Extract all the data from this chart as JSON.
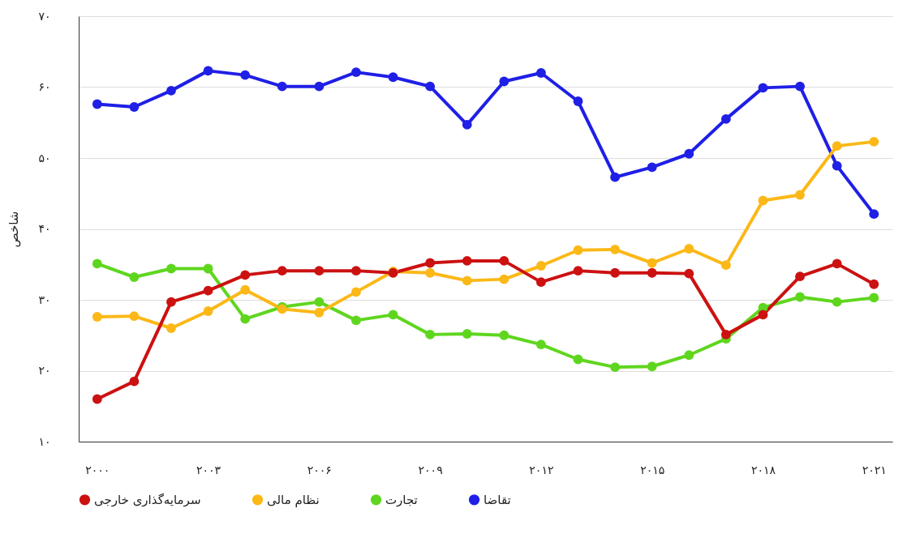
{
  "chart_data": {
    "type": "line",
    "ylabel": "شاخص",
    "x": [
      2000,
      2001,
      2002,
      2003,
      2004,
      2005,
      2006,
      2007,
      2008,
      2009,
      2010,
      2011,
      2012,
      2013,
      2014,
      2015,
      2016,
      2017,
      2018,
      2019,
      2020,
      2021
    ],
    "series": [
      {
        "name": "تقاضا",
        "color": "#1f1fe6",
        "values": [
          57.6,
          57.2,
          59.5,
          62.3,
          61.7,
          60.1,
          60.1,
          62.1,
          61.4,
          60.1,
          54.7,
          60.8,
          62.0,
          58.0,
          47.3,
          48.7,
          50.6,
          55.5,
          59.9,
          60.1,
          48.9,
          42.1
        ]
      },
      {
        "name": "تجارت",
        "color": "#5fd61e",
        "values": [
          35.1,
          33.2,
          34.4,
          34.4,
          27.3,
          29.0,
          29.7,
          27.1,
          27.9,
          25.1,
          25.2,
          25.0,
          23.7,
          21.6,
          20.5,
          20.6,
          22.2,
          24.5,
          28.9,
          30.4,
          29.7,
          30.3
        ]
      },
      {
        "name": "نظام مالی",
        "color": "#fbb817",
        "values": [
          27.6,
          27.7,
          26.0,
          28.4,
          31.4,
          28.7,
          28.2,
          31.1,
          34.0,
          33.8,
          32.7,
          32.9,
          34.8,
          37.0,
          37.1,
          35.2,
          37.2,
          34.9,
          44.0,
          44.8,
          51.7,
          52.3
        ]
      },
      {
        "name": "سرمایه‌گذاری خارجی",
        "color": "#cc1111",
        "values": [
          16.0,
          18.5,
          29.7,
          31.3,
          33.5,
          34.1,
          34.1,
          34.1,
          33.8,
          35.2,
          35.5,
          35.5,
          32.5,
          34.1,
          33.8,
          33.8,
          33.7,
          25.1,
          27.9,
          33.3,
          35.1,
          32.2
        ]
      }
    ],
    "xlim": [
      1999.5,
      2021.5
    ],
    "ylim": [
      10,
      70
    ],
    "xticks": [
      {
        "value": 2000,
        "label": "۲۰۰۰"
      },
      {
        "value": 2003,
        "label": "۲۰۰۳"
      },
      {
        "value": 2006,
        "label": "۲۰۰۶"
      },
      {
        "value": 2009,
        "label": "۲۰۰۹"
      },
      {
        "value": 2012,
        "label": "۲۰۱۲"
      },
      {
        "value": 2015,
        "label": "۲۰۱۵"
      },
      {
        "value": 2018,
        "label": "۲۰۱۸"
      },
      {
        "value": 2021,
        "label": "۲۰۲۱"
      }
    ],
    "yticks": [
      {
        "value": 10,
        "label": "۱۰"
      },
      {
        "value": 20,
        "label": "۲۰"
      },
      {
        "value": 30,
        "label": "۳۰"
      },
      {
        "value": 40,
        "label": "۴۰"
      },
      {
        "value": 50,
        "label": "۵۰"
      },
      {
        "value": 60,
        "label": "۶۰"
      },
      {
        "value": 70,
        "label": "۷۰"
      }
    ],
    "grid": "y",
    "legend": "bottom",
    "marker": "circle",
    "line_style": "solid"
  }
}
